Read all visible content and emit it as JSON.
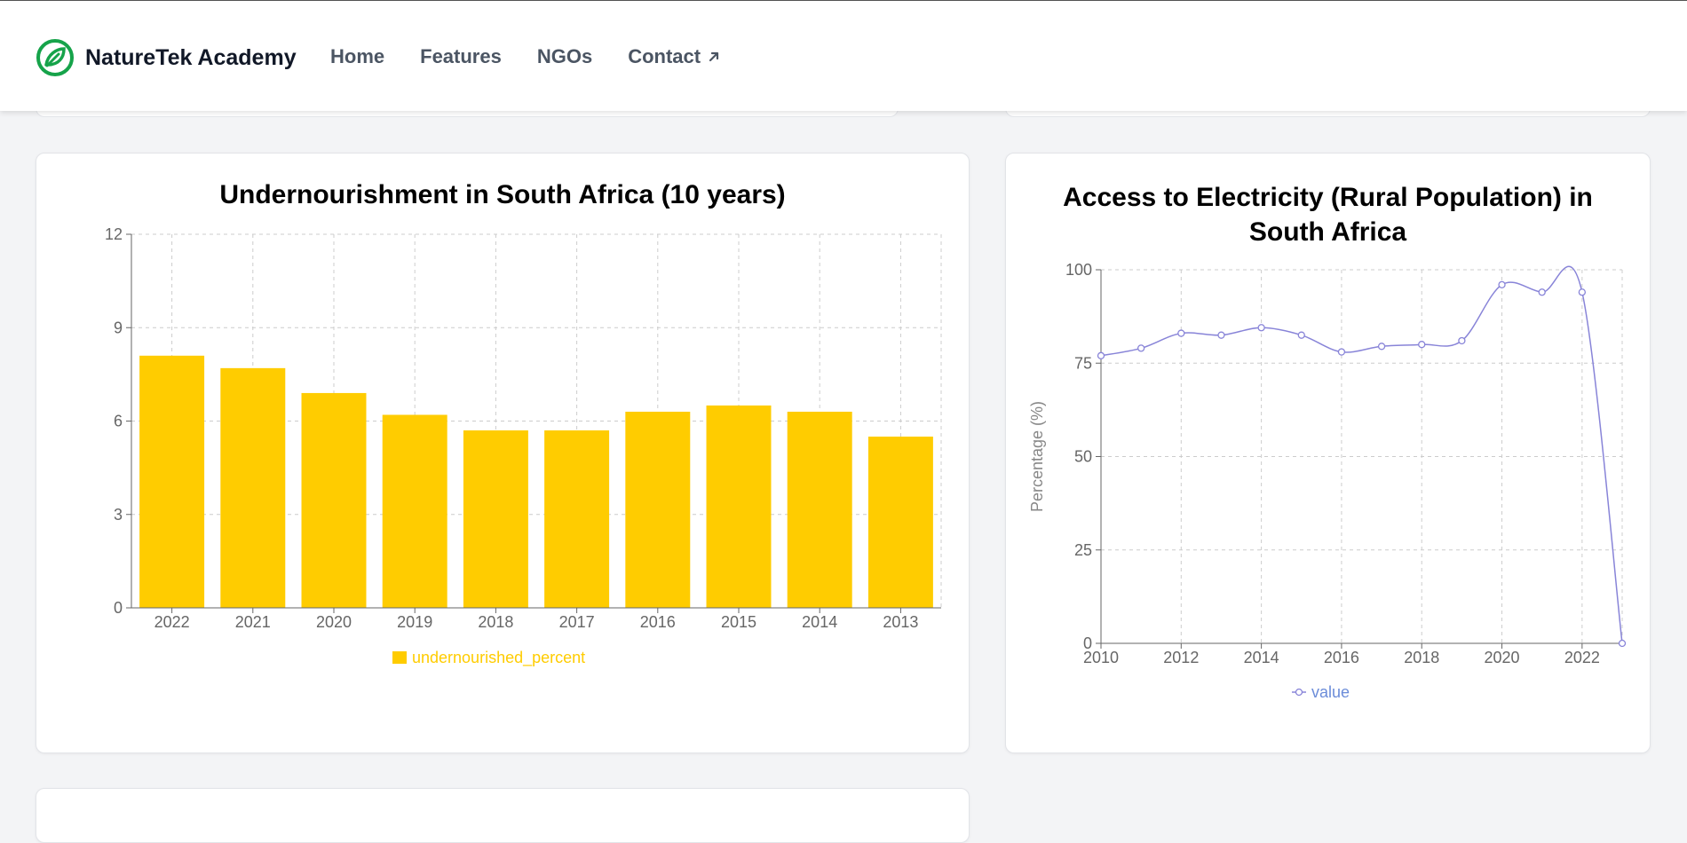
{
  "nav": {
    "brand": "NatureTek Academy",
    "links": [
      {
        "label": "Home"
      },
      {
        "label": "Features"
      },
      {
        "label": "NGOs"
      },
      {
        "label": "Contact"
      }
    ]
  },
  "colors": {
    "brand_green": "#16a34a",
    "bar_yellow": "#ffcc00",
    "line_purple": "#8884d8",
    "legend_blue": "#6b8cd9"
  },
  "cards": {
    "undernourishment": {
      "title": "Undernourishment in South Africa (10 years)"
    },
    "electricity": {
      "title": "Access to Electricity (Rural Population) in South Africa"
    }
  },
  "chart_data": [
    {
      "type": "bar",
      "title": "Undernourishment in South Africa (10 years)",
      "categories": [
        "2022",
        "2021",
        "2020",
        "2019",
        "2018",
        "2017",
        "2016",
        "2015",
        "2014",
        "2013"
      ],
      "series": [
        {
          "name": "undernourished_percent",
          "values": [
            8.1,
            7.7,
            6.9,
            6.2,
            5.7,
            5.7,
            6.3,
            6.5,
            6.3,
            5.5
          ]
        }
      ],
      "ylim": [
        0,
        12
      ],
      "yticks": [
        0,
        3,
        6,
        9,
        12
      ],
      "grid": true,
      "legend": "bottom"
    },
    {
      "type": "line",
      "title": "Access to Electricity (Rural Population) in South Africa",
      "ylabel": "Percentage (%)",
      "x": [
        2010,
        2011,
        2012,
        2013,
        2014,
        2015,
        2016,
        2017,
        2018,
        2019,
        2020,
        2021,
        2022,
        2023
      ],
      "series": [
        {
          "name": "value",
          "values": [
            77,
            79,
            83,
            82.5,
            84.5,
            82.5,
            78,
            79.5,
            80,
            81,
            96,
            94,
            94,
            0
          ]
        }
      ],
      "xlim": [
        2010,
        2023
      ],
      "xticks": [
        2010,
        2012,
        2014,
        2016,
        2018,
        2020,
        2022
      ],
      "ylim": [
        0,
        100
      ],
      "yticks": [
        0,
        25,
        50,
        75,
        100
      ],
      "grid": true,
      "legend": "bottom"
    }
  ]
}
